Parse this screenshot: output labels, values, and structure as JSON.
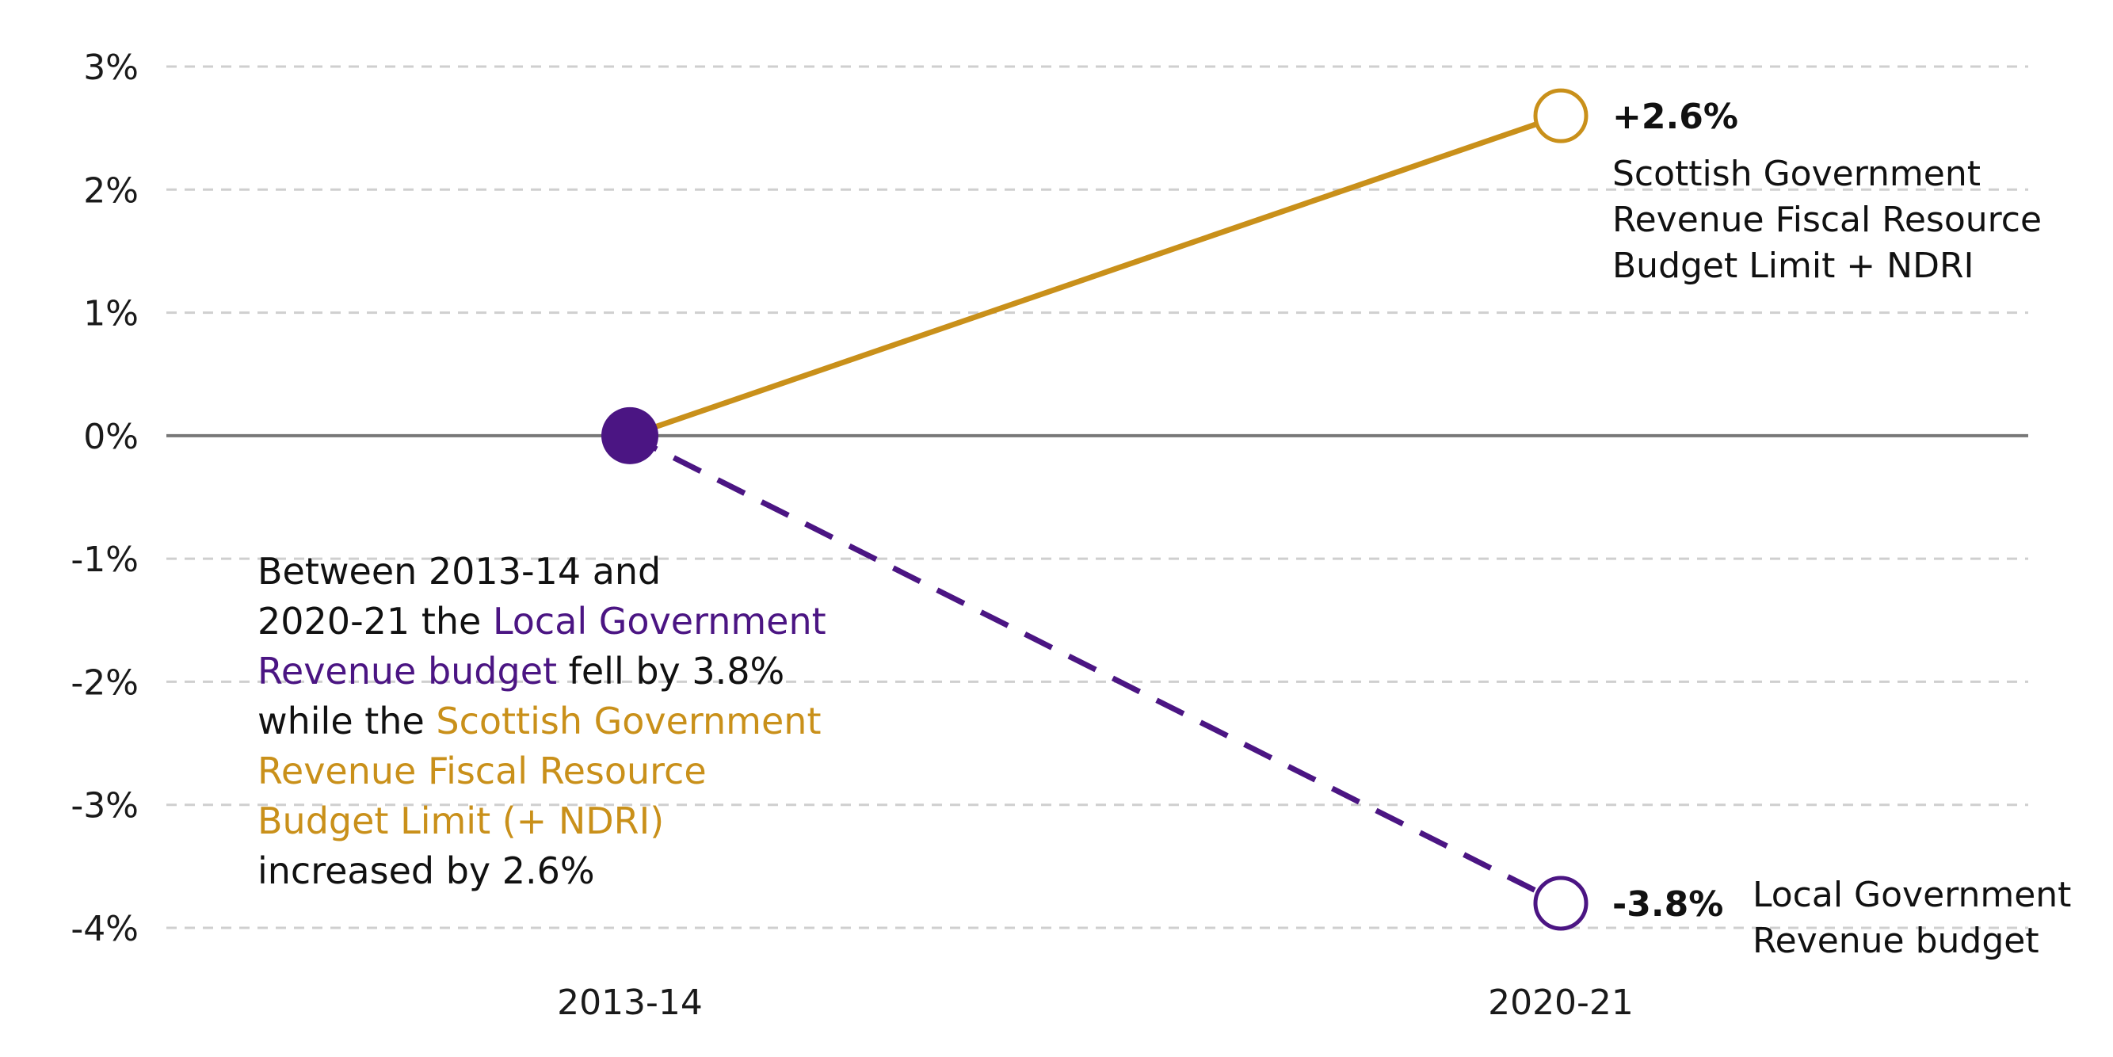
{
  "colors": {
    "sg_series": "#c9901a",
    "lg_series": "#4b1583",
    "gridline": "#cfcfcf",
    "zero_line": "#777777"
  },
  "chart_data": {
    "type": "line",
    "x": [
      "2013-14",
      "2020-21"
    ],
    "ylim": [
      -4,
      3
    ],
    "yticks": [
      3,
      2,
      1,
      0,
      -1,
      -2,
      -3,
      -4
    ],
    "ytick_labels": [
      "3%",
      "2%",
      "1%",
      "0%",
      "-1%",
      "-2%",
      "-3%",
      "-4%"
    ],
    "grid": true,
    "series": [
      {
        "id": "sg",
        "values": [
          0,
          2.6
        ],
        "end_value_label": "+2.6%",
        "end_label_lines": [
          "Scottish Government",
          "Revenue Fiscal Resource",
          "Budget Limit + NDRI"
        ],
        "style": "solid"
      },
      {
        "id": "lg",
        "values": [
          0,
          -3.8
        ],
        "end_value_label": "-3.8%",
        "end_label_lines": [
          "Local Government",
          "Revenue budget"
        ],
        "style": "dashed"
      }
    ],
    "annotation": {
      "line1": "Between 2013-14 and",
      "line2_prefix": "2020-21 the ",
      "lg_name": "Local Government Revenue budget",
      "mid": " fell by 3.8% while the ",
      "sg_name": "Scottish Government Revenue Fiscal Resource Budget Limit (+ NDRI)",
      "suffix": " increased by 2.6%"
    }
  }
}
